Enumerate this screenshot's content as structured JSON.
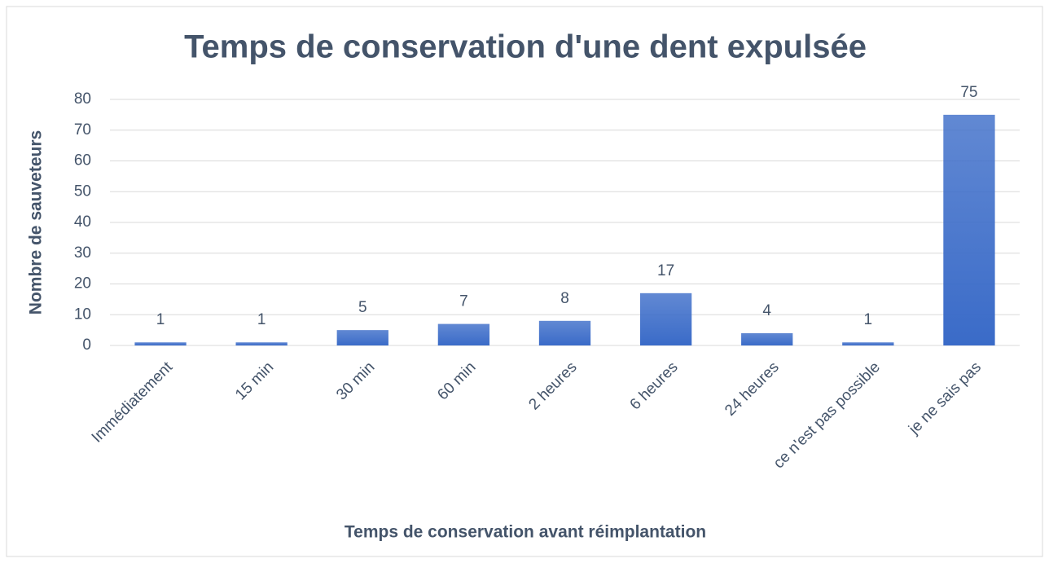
{
  "chart_data": {
    "type": "bar",
    "title": "Temps de conservation d'une dent expulsée",
    "x_label": "Temps de conservation avant réimplantation",
    "y_label": "Nombre de sauveteurs",
    "categories": [
      "Immédiatement",
      "15 min",
      "30 min",
      "60 min",
      "2 heures",
      "6 heures",
      "24 heures",
      "ce n'est pas possible",
      "je ne sais pas"
    ],
    "values": [
      1,
      1,
      5,
      7,
      8,
      17,
      4,
      1,
      75
    ],
    "color": "#3a6bc8",
    "ylim": [
      0,
      80
    ],
    "yticks": [
      0,
      10,
      20,
      30,
      40,
      50,
      60,
      70,
      80
    ],
    "grid": true
  }
}
